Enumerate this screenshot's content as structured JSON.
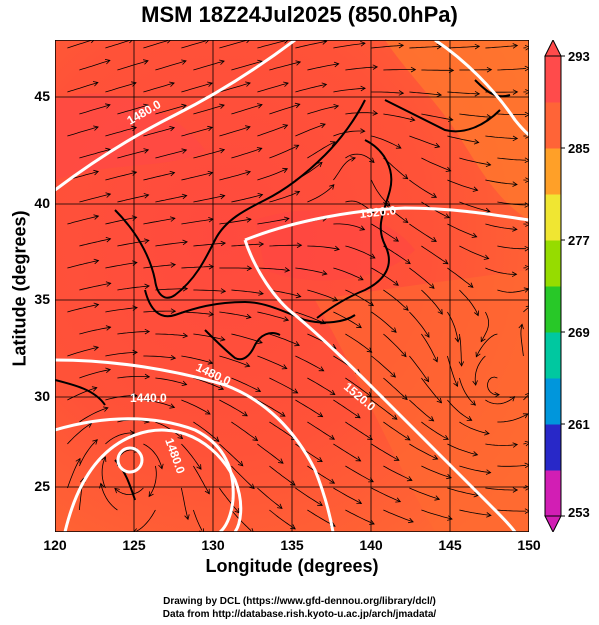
{
  "title": "MSM 18Z24Jul2025 (850.0hPa)",
  "axes": {
    "xlabel": "Longitude (degrees)",
    "ylabel": "Latitude  (degrees)",
    "xticks": [
      "120",
      "125",
      "130",
      "135",
      "140",
      "145",
      "150"
    ],
    "yticks": [
      "45",
      "40",
      "35",
      "30",
      "25"
    ],
    "xlim": [
      120,
      150
    ],
    "ylim": [
      22.5,
      48
    ]
  },
  "colorbar": {
    "ticks": [
      "293",
      "285",
      "277",
      "269",
      "261",
      "253"
    ],
    "min": 253,
    "max": 293,
    "colors": [
      "#d21eb4",
      "#2828c8",
      "#0096dc",
      "#00c8a0",
      "#28c828",
      "#96dc00",
      "#f0e632",
      "#ffa028",
      "#ff6437",
      "#ff4b4b"
    ]
  },
  "contours": {
    "labels": [
      "1480.0",
      "1520.0",
      "1480.0",
      "1440.0",
      "1520.0",
      "1480.0"
    ]
  },
  "credits": {
    "line1": "Drawing by DCL (https://www.gfd-dennou.org/library/dcl/)",
    "line2": "Data from http://database.rish.kyoto-u.ac.jp/arch/jmadata/"
  }
}
